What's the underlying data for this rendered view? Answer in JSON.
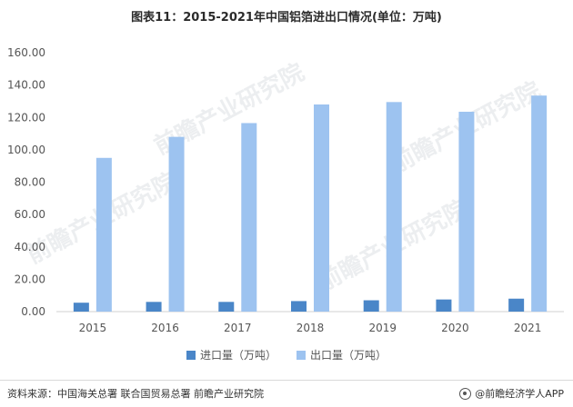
{
  "chart_data": {
    "type": "bar",
    "title": "图表11：2015-2021年中国铝箔进出口情况(单位：万吨)",
    "xlabel": "",
    "ylabel": "",
    "categories": [
      "2015",
      "2016",
      "2017",
      "2018",
      "2019",
      "2020",
      "2021"
    ],
    "series": [
      {
        "name": "进口量（万吨）",
        "color": "#4a86c8",
        "values": [
          5.5,
          6.0,
          6.0,
          6.5,
          7.0,
          7.5,
          8.0
        ]
      },
      {
        "name": "出口量（万吨）",
        "color": "#9dc3f0",
        "values": [
          95.0,
          108.0,
          116.5,
          128.0,
          129.5,
          123.5,
          133.5
        ]
      }
    ],
    "ylim": [
      0,
      160
    ],
    "yticks": [
      "0.00",
      "20.00",
      "40.00",
      "60.00",
      "80.00",
      "100.00",
      "120.00",
      "140.00",
      "160.00"
    ],
    "grid": false,
    "legend_position": "bottom"
  },
  "footer": {
    "source": "资料来源：中国海关总署 联合国贸易总署 前瞻产业研究院",
    "brand": "@前瞻经济学人APP"
  },
  "watermark": {
    "text": "前瞻产业研究院"
  }
}
